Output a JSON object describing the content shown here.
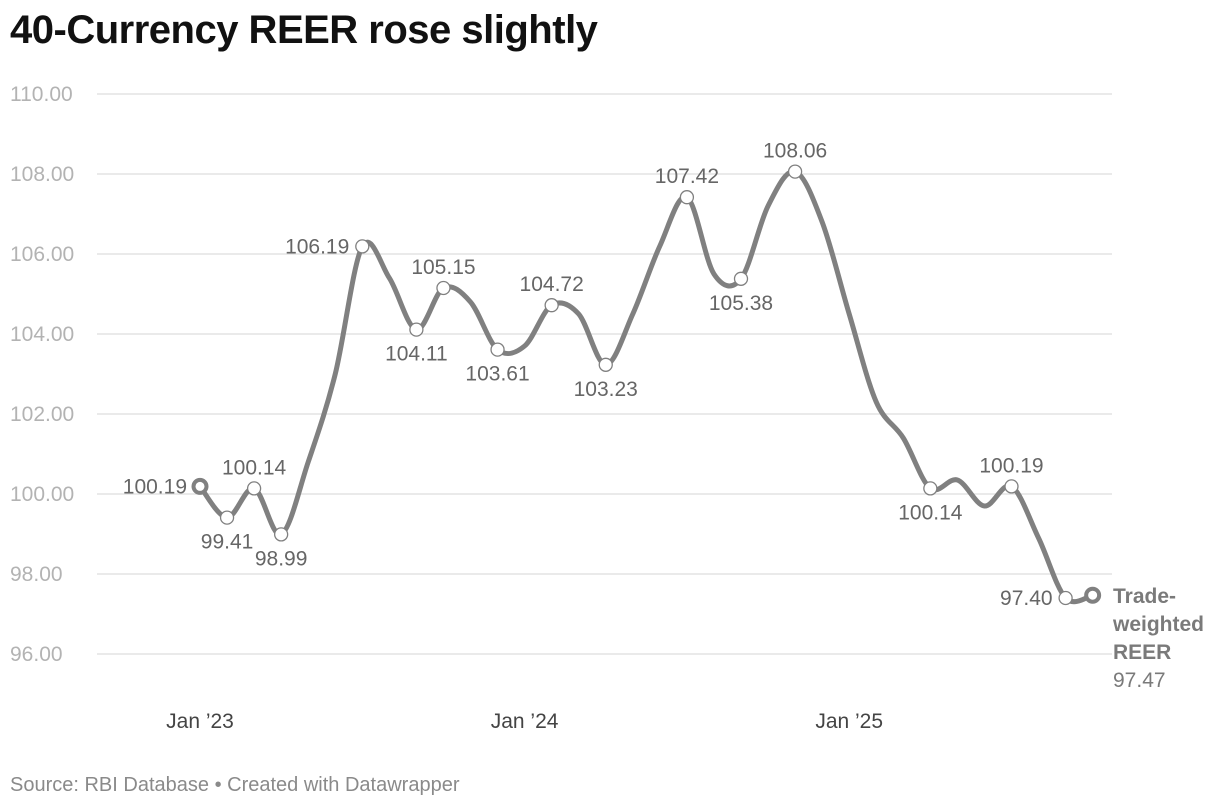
{
  "title": "40-Currency REER rose slightly",
  "footer": {
    "source": "Source: RBI Database",
    "separator": "•",
    "credit": "Created with Datawrapper"
  },
  "colors": {
    "line": "#808080",
    "grid": "#dddddd",
    "tick": "#b3b3b3",
    "axis_label": "#444444",
    "data_label": "#666666"
  },
  "chart_data": {
    "type": "line",
    "title": "40-Currency REER rose slightly",
    "xlabel": "",
    "ylabel": "",
    "ylim": [
      96,
      110
    ],
    "yticks": [
      "110.00",
      "108.00",
      "106.00",
      "104.00",
      "102.00",
      "100.00",
      "98.00",
      "96.00"
    ],
    "xticks": [
      {
        "label": "Jan ’23",
        "x": 0
      },
      {
        "label": "Jan ’24",
        "x": 12
      },
      {
        "label": "Jan ’25",
        "x": 24
      }
    ],
    "grid": true,
    "series": [
      {
        "name": "Trade-weighted REER",
        "name_lines": [
          "Trade-",
          "weighted",
          "REER"
        ],
        "last_value_label": "97.47",
        "x": [
          0,
          1,
          2,
          3,
          4,
          5,
          6,
          7,
          8,
          9,
          10,
          11,
          12,
          13,
          14,
          15,
          16,
          17,
          18,
          19,
          20,
          21,
          22,
          23,
          24,
          25,
          26,
          27,
          28,
          29,
          30,
          31,
          32,
          33
        ],
        "values": [
          100.19,
          99.41,
          100.14,
          98.99,
          100.8,
          103.0,
          106.19,
          105.4,
          104.11,
          105.15,
          104.8,
          103.61,
          103.7,
          104.72,
          104.5,
          103.23,
          104.5,
          106.2,
          107.42,
          105.5,
          105.38,
          107.2,
          108.06,
          106.8,
          104.5,
          102.3,
          101.4,
          100.14,
          100.35,
          99.7,
          100.19,
          98.9,
          97.4,
          97.47
        ],
        "points": [
          {
            "x": 1,
            "value": 99.41,
            "label": "99.41",
            "pos": "below"
          },
          {
            "x": 2,
            "value": 100.14,
            "label": "100.14",
            "pos": "above"
          },
          {
            "x": 3,
            "value": 98.99,
            "label": "98.99",
            "pos": "below"
          },
          {
            "x": 6,
            "value": 106.19,
            "label": "106.19",
            "pos": "left"
          },
          {
            "x": 8,
            "value": 104.11,
            "label": "104.11",
            "pos": "below"
          },
          {
            "x": 9,
            "value": 105.15,
            "label": "105.15",
            "pos": "above"
          },
          {
            "x": 11,
            "value": 103.61,
            "label": "103.61",
            "pos": "below"
          },
          {
            "x": 13,
            "value": 104.72,
            "label": "104.72",
            "pos": "above"
          },
          {
            "x": 15,
            "value": 103.23,
            "label": "103.23",
            "pos": "below"
          },
          {
            "x": 18,
            "value": 107.42,
            "label": "107.42",
            "pos": "above"
          },
          {
            "x": 20,
            "value": 105.38,
            "label": "105.38",
            "pos": "below"
          },
          {
            "x": 22,
            "value": 108.06,
            "label": "108.06",
            "pos": "above"
          },
          {
            "x": 27,
            "value": 100.14,
            "label": "100.14",
            "pos": "below"
          },
          {
            "x": 30,
            "value": 100.19,
            "label": "100.19",
            "pos": "above"
          },
          {
            "x": 32,
            "value": 97.4,
            "label": "97.40",
            "pos": "left"
          }
        ],
        "start_point": {
          "x": 0,
          "value": 100.19,
          "label": "100.19",
          "pos": "left"
        },
        "end_point": {
          "x": 33,
          "value": 97.47
        }
      }
    ]
  }
}
